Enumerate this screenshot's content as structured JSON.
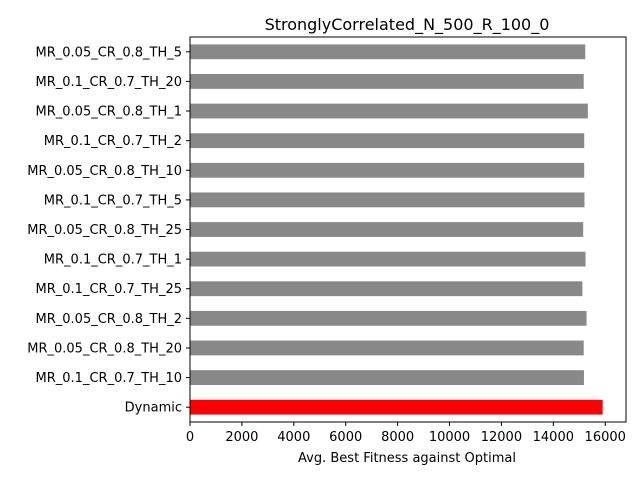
{
  "chart_data": {
    "type": "bar",
    "orientation": "horizontal",
    "title": "StronglyCorrelated_N_500_R_100_0",
    "xlabel": "Avg. Best Fitness against Optimal",
    "ylabel": "",
    "xlim": [
      0,
      16800
    ],
    "xticks": [
      0,
      2000,
      4000,
      6000,
      8000,
      10000,
      12000,
      14000,
      16000
    ],
    "grid": false,
    "legend": "none",
    "categories": [
      "MR_0.05_CR_0.8_TH_5",
      "MR_0.1_CR_0.7_TH_20",
      "MR_0.05_CR_0.8_TH_1",
      "MR_0.1_CR_0.7_TH_2",
      "MR_0.05_CR_0.8_TH_10",
      "MR_0.1_CR_0.7_TH_5",
      "MR_0.05_CR_0.8_TH_25",
      "MR_0.1_CR_0.7_TH_1",
      "MR_0.1_CR_0.7_TH_25",
      "MR_0.05_CR_0.8_TH_2",
      "MR_0.05_CR_0.8_TH_20",
      "MR_0.1_CR_0.7_TH_10",
      "Dynamic"
    ],
    "values": [
      15230,
      15170,
      15330,
      15190,
      15190,
      15200,
      15150,
      15240,
      15120,
      15280,
      15170,
      15180,
      15900
    ],
    "colors": [
      "#888888",
      "#888888",
      "#888888",
      "#888888",
      "#888888",
      "#888888",
      "#888888",
      "#888888",
      "#888888",
      "#888888",
      "#888888",
      "#888888",
      "#ff0000"
    ]
  }
}
